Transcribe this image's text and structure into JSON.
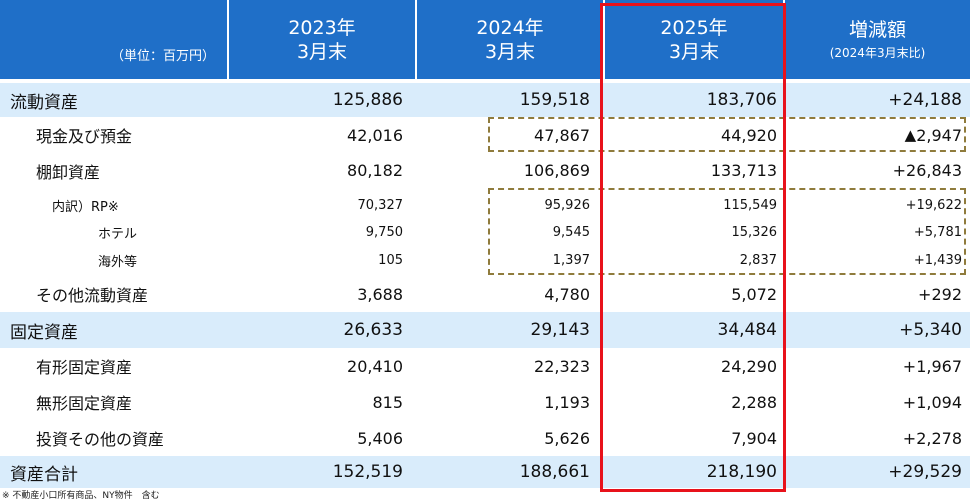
{
  "header": {
    "unit_label": "（単位：百万円）",
    "columns": [
      {
        "line1": "2023年",
        "line2": "3月末"
      },
      {
        "line1": "2024年",
        "line2": "3月末"
      },
      {
        "line1": "2025年",
        "line2": "3月末"
      },
      {
        "line1": "増減額",
        "line2": "(2024年3月末比)"
      }
    ]
  },
  "rows": [
    {
      "label": "流動資産",
      "v2023": "125,886",
      "v2024": "159,518",
      "v2025": "183,706",
      "diff": "+24,188"
    },
    {
      "label": "現金及び預金",
      "v2023": "42,016",
      "v2024": "47,867",
      "v2025": "44,920",
      "diff_marker": "▲",
      "diff": "2,947"
    },
    {
      "label": "棚卸資産",
      "v2023": "80,182",
      "v2024": "106,869",
      "v2025": "133,713",
      "diff": "+26,843"
    },
    {
      "label": "内訳）RP※",
      "v2023": "70,327",
      "v2024": "95,926",
      "v2025": "115,549",
      "diff": "+19,622"
    },
    {
      "label": "ホテル",
      "v2023": "9,750",
      "v2024": "9,545",
      "v2025": "15,326",
      "diff": "+5,781"
    },
    {
      "label": "海外等",
      "v2023": "105",
      "v2024": "1,397",
      "v2025": "2,837",
      "diff": "+1,439"
    },
    {
      "label": "その他流動資産",
      "v2023": "3,688",
      "v2024": "4,780",
      "v2025": "5,072",
      "diff": "+292"
    },
    {
      "label": "固定資産",
      "v2023": "26,633",
      "v2024": "29,143",
      "v2025": "34,484",
      "diff": "+5,340"
    },
    {
      "label": "有形固定資産",
      "v2023": "20,410",
      "v2024": "22,323",
      "v2025": "24,290",
      "diff": "+1,967"
    },
    {
      "label": "無形固定資産",
      "v2023": "815",
      "v2024": "1,193",
      "v2025": "2,288",
      "diff": "+1,094"
    },
    {
      "label": "投資その他の資産",
      "v2023": "5,406",
      "v2024": "5,626",
      "v2025": "7,904",
      "diff": "+2,278"
    },
    {
      "label": "資産合計",
      "v2023": "152,519",
      "v2024": "188,661",
      "v2025": "218,190",
      "diff": "+29,529"
    }
  ],
  "footnote": "※ 不動産小口所有商品、NY物件　含む"
}
